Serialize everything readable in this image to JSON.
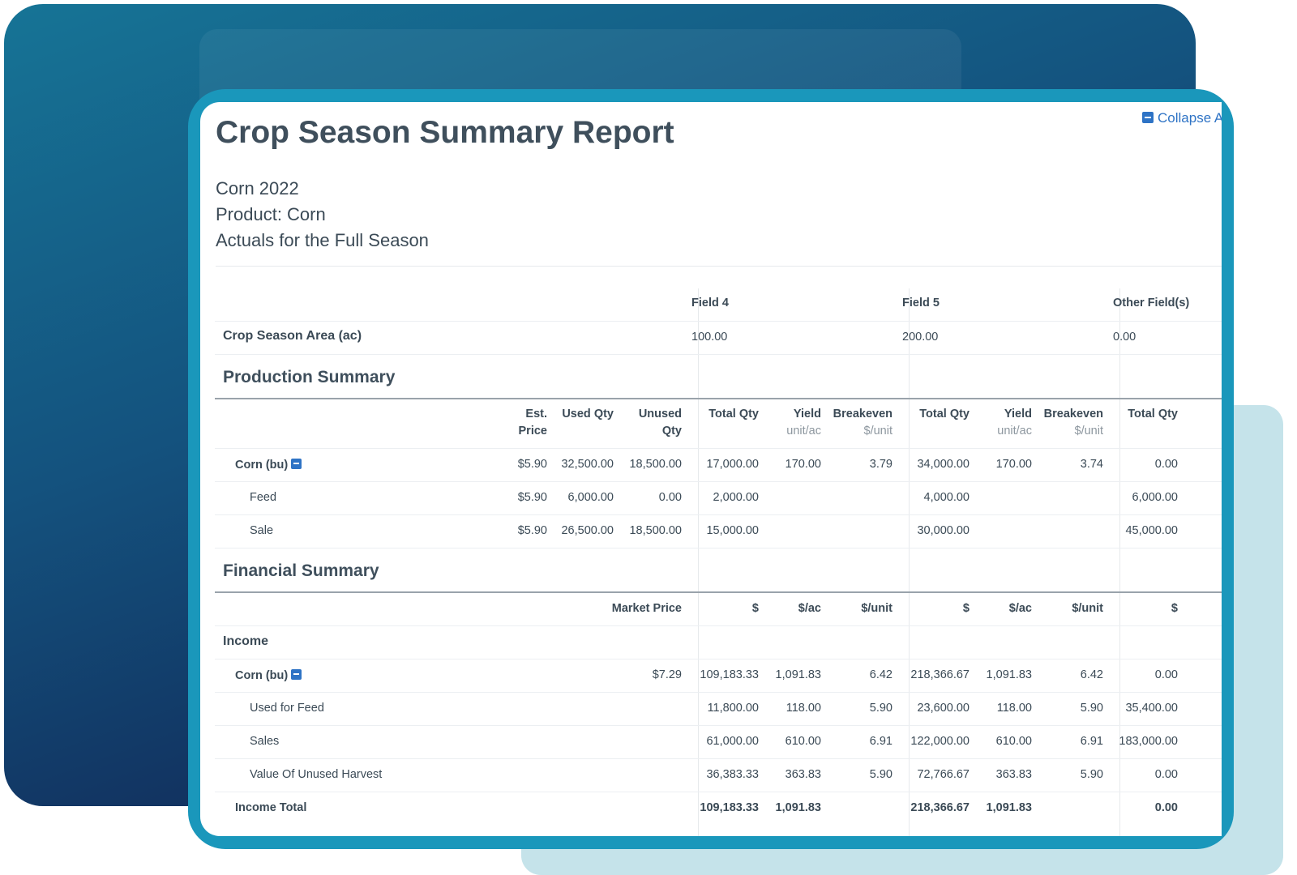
{
  "report": {
    "title": "Crop Season Summary Report",
    "collapse_label": "Collapse A",
    "subtitle_lines": [
      "Corn 2022",
      "Product: Corn",
      "Actuals for the Full Season"
    ]
  },
  "fields": [
    "Field 4",
    "Field 5",
    "Other Field(s)"
  ],
  "area": {
    "label": "Crop Season Area (ac)",
    "values": [
      "100.00",
      "200.00",
      "0.00"
    ]
  },
  "production": {
    "heading": "Production Summary",
    "header_left": [
      [
        "Est.",
        "Price"
      ],
      [
        "Used Qty",
        ""
      ],
      [
        "Unused",
        "Qty"
      ]
    ],
    "header_field": {
      "total": "Total Qty",
      "yield": "Yield",
      "yield_unit": "unit/ac",
      "breakeven": "Breakeven",
      "breakeven_unit": "$/unit"
    },
    "rows": [
      {
        "label": "Corn (bu)",
        "left": [
          "$5.90",
          "32,500.00",
          "18,500.00"
        ],
        "f4": [
          "17,000.00",
          "170.00",
          "3.79"
        ],
        "f5": [
          "34,000.00",
          "170.00",
          "3.74"
        ],
        "other": "0.00"
      },
      {
        "label": "Feed",
        "left": [
          "$5.90",
          "6,000.00",
          "0.00"
        ],
        "f4": [
          "2,000.00",
          "",
          ""
        ],
        "f5": [
          "4,000.00",
          "",
          ""
        ],
        "other": "6,000.00"
      },
      {
        "label": "Sale",
        "left": [
          "$5.90",
          "26,500.00",
          "18,500.00"
        ],
        "f4": [
          "15,000.00",
          "",
          ""
        ],
        "f5": [
          "30,000.00",
          "",
          ""
        ],
        "other": "45,000.00"
      }
    ]
  },
  "financial": {
    "heading": "Financial Summary",
    "header": {
      "market": "Market Price",
      "dollar": "$",
      "per_ac": "$/ac",
      "per_unit": "$/unit"
    },
    "income_label": "Income",
    "rows": [
      {
        "label": "Corn (bu)",
        "market": "$7.29",
        "f4": [
          "109,183.33",
          "1,091.83",
          "6.42"
        ],
        "f5": [
          "218,366.67",
          "1,091.83",
          "6.42"
        ],
        "other": "0.00"
      },
      {
        "label": "Used for Feed",
        "market": "",
        "f4": [
          "11,800.00",
          "118.00",
          "5.90"
        ],
        "f5": [
          "23,600.00",
          "118.00",
          "5.90"
        ],
        "other": "35,400.00"
      },
      {
        "label": "Sales",
        "market": "",
        "f4": [
          "61,000.00",
          "610.00",
          "6.91"
        ],
        "f5": [
          "122,000.00",
          "610.00",
          "6.91"
        ],
        "other": "183,000.00"
      },
      {
        "label": "Value Of Unused Harvest",
        "market": "",
        "f4": [
          "36,383.33",
          "363.83",
          "5.90"
        ],
        "f5": [
          "72,766.67",
          "363.83",
          "5.90"
        ],
        "other": "0.00"
      }
    ],
    "total": {
      "label": "Income Total",
      "f4": [
        "109,183.33",
        "1,091.83",
        ""
      ],
      "f5": [
        "218,366.67",
        "1,091.83",
        ""
      ],
      "other": "0.00"
    }
  }
}
